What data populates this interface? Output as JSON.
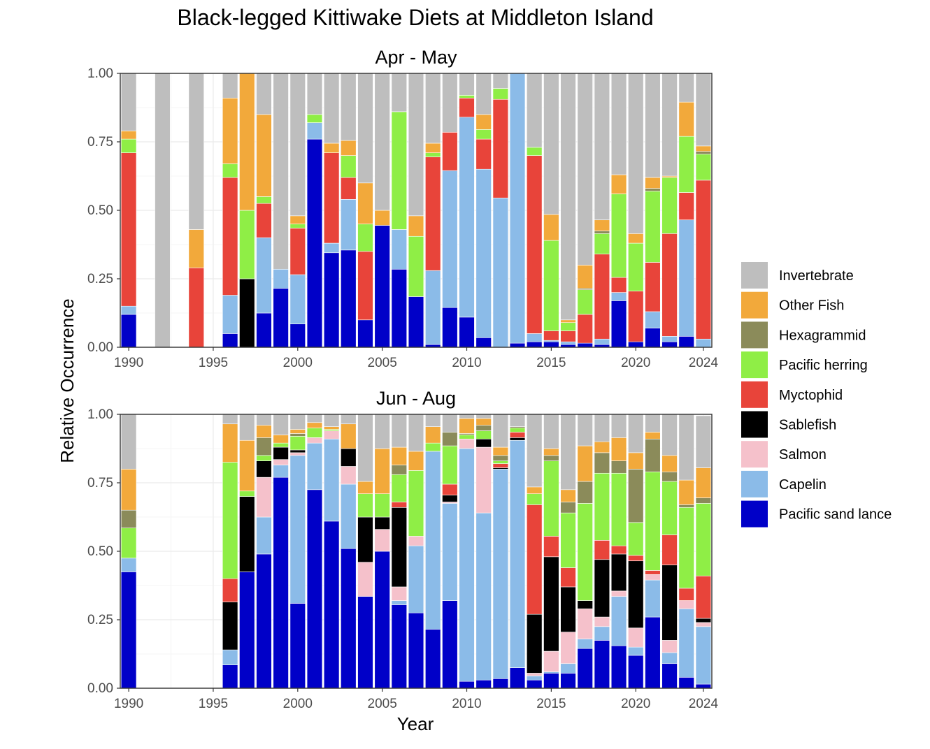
{
  "chart_data": {
    "type": "bar",
    "stacked": true,
    "title": "Black-legged Kittiwake Diets at Middleton Island",
    "xlabel": "Year",
    "ylabel": "Relative Occurrence",
    "xlim": [
      1989.5,
      2024.5
    ],
    "ylim": [
      0,
      1
    ],
    "x_ticks": [
      "1990",
      "1995",
      "2000",
      "2005",
      "2010",
      "2015",
      "2020",
      "2024"
    ],
    "y_ticks": [
      "0.00",
      "0.25",
      "0.50",
      "0.75",
      "1.00"
    ],
    "grid": true,
    "legend_position": "right",
    "stack_order": [
      "Pacific sand lance",
      "Capelin",
      "Salmon",
      "Sablefish",
      "Myctophid",
      "Pacific herring",
      "Hexagrammid",
      "Other Fish",
      "Invertebrate"
    ],
    "legend": [
      {
        "label": "Invertebrate",
        "color": "#bebebe"
      },
      {
        "label": "Other Fish",
        "color": "#f2a93b"
      },
      {
        "label": "Hexagrammid",
        "color": "#8b8b5a"
      },
      {
        "label": "Pacific herring",
        "color": "#8fee46"
      },
      {
        "label": "Myctophid",
        "color": "#e8443a"
      },
      {
        "label": "Sablefish",
        "color": "#000000"
      },
      {
        "label": "Salmon",
        "color": "#f5c1cb"
      },
      {
        "label": "Capelin",
        "color": "#8bbbe8"
      },
      {
        "label": "Pacific sand lance",
        "color": "#0000c8"
      }
    ],
    "panels": [
      {
        "label": "Apr - May",
        "bars": [
          {
            "year": 1990,
            "Pacific sand lance": 0.12,
            "Capelin": 0.03,
            "Myctophid": 0.56,
            "Pacific herring": 0.05,
            "Other Fish": 0.03,
            "Invertebrate": 0.21
          },
          {
            "year": 1992,
            "Invertebrate": 1.0
          },
          {
            "year": 1994,
            "Myctophid": 0.29,
            "Other Fish": 0.14,
            "Invertebrate": 0.57
          },
          {
            "year": 1996,
            "Pacific sand lance": 0.05,
            "Capelin": 0.14,
            "Myctophid": 0.43,
            "Pacific herring": 0.05,
            "Other Fish": 0.24,
            "Invertebrate": 0.09
          },
          {
            "year": 1997,
            "Sablefish": 0.25,
            "Pacific herring": 0.25,
            "Other Fish": 0.5
          },
          {
            "year": 1998,
            "Pacific sand lance": 0.125,
            "Capelin": 0.275,
            "Myctophid": 0.125,
            "Pacific herring": 0.025,
            "Other Fish": 0.3,
            "Invertebrate": 0.15
          },
          {
            "year": 1999,
            "Pacific sand lance": 0.215,
            "Capelin": 0.07,
            "Invertebrate": 0.715
          },
          {
            "year": 2000,
            "Pacific sand lance": 0.085,
            "Capelin": 0.18,
            "Myctophid": 0.17,
            "Pacific herring": 0.015,
            "Other Fish": 0.03,
            "Invertebrate": 0.52
          },
          {
            "year": 2001,
            "Pacific sand lance": 0.76,
            "Capelin": 0.06,
            "Pacific herring": 0.03,
            "Invertebrate": 0.15
          },
          {
            "year": 2002,
            "Pacific sand lance": 0.345,
            "Capelin": 0.035,
            "Myctophid": 0.33,
            "Other Fish": 0.035,
            "Invertebrate": 0.255
          },
          {
            "year": 2003,
            "Pacific sand lance": 0.355,
            "Capelin": 0.185,
            "Myctophid": 0.08,
            "Pacific herring": 0.08,
            "Other Fish": 0.055,
            "Invertebrate": 0.245
          },
          {
            "year": 2004,
            "Pacific sand lance": 0.1,
            "Myctophid": 0.25,
            "Pacific herring": 0.1,
            "Other Fish": 0.15,
            "Invertebrate": 0.4
          },
          {
            "year": 2005,
            "Pacific sand lance": 0.445,
            "Other Fish": 0.055,
            "Invertebrate": 0.5
          },
          {
            "year": 2006,
            "Pacific sand lance": 0.285,
            "Capelin": 0.145,
            "Pacific herring": 0.43,
            "Invertebrate": 0.14
          },
          {
            "year": 2007,
            "Pacific sand lance": 0.185,
            "Pacific herring": 0.22,
            "Other Fish": 0.075,
            "Invertebrate": 0.52
          },
          {
            "year": 2008,
            "Pacific sand lance": 0.01,
            "Capelin": 0.27,
            "Myctophid": 0.415,
            "Pacific herring": 0.015,
            "Other Fish": 0.035,
            "Invertebrate": 0.255
          },
          {
            "year": 2009,
            "Pacific sand lance": 0.145,
            "Capelin": 0.5,
            "Myctophid": 0.14,
            "Invertebrate": 0.215
          },
          {
            "year": 2010,
            "Pacific sand lance": 0.11,
            "Capelin": 0.73,
            "Myctophid": 0.07,
            "Pacific herring": 0.01,
            "Invertebrate": 0.08
          },
          {
            "year": 2011,
            "Pacific sand lance": 0.035,
            "Capelin": 0.615,
            "Myctophid": 0.11,
            "Pacific herring": 0.035,
            "Other Fish": 0.055,
            "Invertebrate": 0.15
          },
          {
            "year": 2012,
            "Capelin": 0.545,
            "Myctophid": 0.36,
            "Pacific herring": 0.04,
            "Invertebrate": 0.055
          },
          {
            "year": 2013,
            "Pacific sand lance": 0.015,
            "Capelin": 0.985
          },
          {
            "year": 2014,
            "Pacific sand lance": 0.02,
            "Capelin": 0.03,
            "Myctophid": 0.65,
            "Pacific herring": 0.03,
            "Invertebrate": 0.27
          },
          {
            "year": 2015,
            "Pacific sand lance": 0.02,
            "Capelin": 0.005,
            "Myctophid": 0.035,
            "Pacific herring": 0.33,
            "Other Fish": 0.095,
            "Invertebrate": 0.515
          },
          {
            "year": 2016,
            "Pacific sand lance": 0.01,
            "Capelin": 0.01,
            "Myctophid": 0.04,
            "Pacific herring": 0.03,
            "Other Fish": 0.01,
            "Invertebrate": 0.9
          },
          {
            "year": 2017,
            "Pacific sand lance": 0.015,
            "Myctophid": 0.105,
            "Pacific herring": 0.09,
            "Hexagrammid": 0.005,
            "Other Fish": 0.085,
            "Invertebrate": 0.7
          },
          {
            "year": 2018,
            "Pacific sand lance": 0.01,
            "Capelin": 0.02,
            "Myctophid": 0.31,
            "Pacific herring": 0.075,
            "Hexagrammid": 0.01,
            "Other Fish": 0.04,
            "Invertebrate": 0.535
          },
          {
            "year": 2019,
            "Pacific sand lance": 0.17,
            "Capelin": 0.03,
            "Myctophid": 0.055,
            "Pacific herring": 0.305,
            "Other Fish": 0.07,
            "Invertebrate": 0.37
          },
          {
            "year": 2020,
            "Pacific sand lance": 0.02,
            "Myctophid": 0.185,
            "Pacific herring": 0.175,
            "Other Fish": 0.035,
            "Invertebrate": 0.585
          },
          {
            "year": 2021,
            "Pacific sand lance": 0.07,
            "Capelin": 0.06,
            "Myctophid": 0.18,
            "Pacific herring": 0.26,
            "Hexagrammid": 0.01,
            "Other Fish": 0.04,
            "Invertebrate": 0.38
          },
          {
            "year": 2022,
            "Pacific sand lance": 0.02,
            "Capelin": 0.02,
            "Myctophid": 0.375,
            "Pacific herring": 0.205,
            "Other Fish": 0.005,
            "Invertebrate": 0.375
          },
          {
            "year": 2023,
            "Pacific sand lance": 0.04,
            "Capelin": 0.425,
            "Myctophid": 0.1,
            "Pacific herring": 0.205,
            "Other Fish": 0.125,
            "Invertebrate": 0.105
          },
          {
            "year": 2024,
            "Capelin": 0.03,
            "Myctophid": 0.58,
            "Pacific herring": 0.095,
            "Hexagrammid": 0.01,
            "Other Fish": 0.02,
            "Invertebrate": 0.265
          }
        ]
      },
      {
        "label": "Jun - Aug",
        "bars": [
          {
            "year": 1990,
            "Pacific sand lance": 0.425,
            "Capelin": 0.05,
            "Pacific herring": 0.11,
            "Hexagrammid": 0.065,
            "Other Fish": 0.15,
            "Invertebrate": 0.2
          },
          {
            "year": 1996,
            "Pacific sand lance": 0.085,
            "Capelin": 0.055,
            "Sablefish": 0.175,
            "Myctophid": 0.085,
            "Pacific herring": 0.425,
            "Other Fish": 0.14,
            "Invertebrate": 0.035
          },
          {
            "year": 1997,
            "Pacific sand lance": 0.425,
            "Sablefish": 0.275,
            "Pacific herring": 0.02,
            "Other Fish": 0.185,
            "Invertebrate": 0.095
          },
          {
            "year": 1998,
            "Pacific sand lance": 0.49,
            "Capelin": 0.135,
            "Salmon": 0.145,
            "Sablefish": 0.06,
            "Pacific herring": 0.02,
            "Hexagrammid": 0.065,
            "Other Fish": 0.045,
            "Invertebrate": 0.04
          },
          {
            "year": 1999,
            "Pacific sand lance": 0.77,
            "Capelin": 0.045,
            "Salmon": 0.02,
            "Sablefish": 0.045,
            "Pacific herring": 0.015,
            "Other Fish": 0.03,
            "Invertebrate": 0.075
          },
          {
            "year": 2000,
            "Pacific sand lance": 0.31,
            "Capelin": 0.54,
            "Salmon": 0.01,
            "Sablefish": 0.01,
            "Pacific herring": 0.05,
            "Hexagrammid": 0.01,
            "Other Fish": 0.015,
            "Invertebrate": 0.055
          },
          {
            "year": 2001,
            "Pacific sand lance": 0.725,
            "Capelin": 0.17,
            "Salmon": 0.02,
            "Pacific herring": 0.035,
            "Other Fish": 0.02,
            "Invertebrate": 0.03
          },
          {
            "year": 2002,
            "Pacific sand lance": 0.61,
            "Capelin": 0.3,
            "Salmon": 0.03,
            "Pacific herring": 0.005,
            "Other Fish": 0.01,
            "Invertebrate": 0.045
          },
          {
            "year": 2003,
            "Pacific sand lance": 0.51,
            "Capelin": 0.235,
            "Salmon": 0.065,
            "Sablefish": 0.065,
            "Other Fish": 0.09,
            "Invertebrate": 0.035
          },
          {
            "year": 2004,
            "Pacific sand lance": 0.335,
            "Salmon": 0.125,
            "Sablefish": 0.165,
            "Pacific herring": 0.085,
            "Other Fish": 0.045,
            "Invertebrate": 0.245
          },
          {
            "year": 2005,
            "Pacific sand lance": 0.5,
            "Salmon": 0.08,
            "Sablefish": 0.045,
            "Pacific herring": 0.085,
            "Other Fish": 0.165,
            "Invertebrate": 0.125
          },
          {
            "year": 2006,
            "Pacific sand lance": 0.305,
            "Capelin": 0.015,
            "Salmon": 0.05,
            "Sablefish": 0.29,
            "Myctophid": 0.02,
            "Pacific herring": 0.1,
            "Hexagrammid": 0.035,
            "Other Fish": 0.065,
            "Invertebrate": 0.12
          },
          {
            "year": 2007,
            "Pacific sand lance": 0.275,
            "Capelin": 0.245,
            "Salmon": 0.035,
            "Pacific herring": 0.24,
            "Other Fish": 0.07,
            "Invertebrate": 0.135
          },
          {
            "year": 2008,
            "Pacific sand lance": 0.215,
            "Capelin": 0.65,
            "Pacific herring": 0.03,
            "Other Fish": 0.06,
            "Invertebrate": 0.045
          },
          {
            "year": 2009,
            "Pacific sand lance": 0.32,
            "Capelin": 0.355,
            "Salmon": 0.005,
            "Sablefish": 0.025,
            "Myctophid": 0.04,
            "Pacific herring": 0.14,
            "Hexagrammid": 0.05,
            "Invertebrate": 0.065
          },
          {
            "year": 2010,
            "Pacific sand lance": 0.025,
            "Capelin": 0.85,
            "Salmon": 0.035,
            "Pacific herring": 0.015,
            "Hexagrammid": 0.005,
            "Other Fish": 0.055,
            "Invertebrate": 0.015
          },
          {
            "year": 2011,
            "Pacific sand lance": 0.03,
            "Capelin": 0.61,
            "Salmon": 0.24,
            "Sablefish": 0.03,
            "Pacific herring": 0.03,
            "Hexagrammid": 0.02,
            "Other Fish": 0.025,
            "Invertebrate": 0.015
          },
          {
            "year": 2012,
            "Pacific sand lance": 0.035,
            "Capelin": 0.765,
            "Sablefish": 0.005,
            "Myctophid": 0.015,
            "Pacific herring": 0.01,
            "Hexagrammid": 0.02,
            "Other Fish": 0.03,
            "Invertebrate": 0.12
          },
          {
            "year": 2013,
            "Pacific sand lance": 0.075,
            "Capelin": 0.83,
            "Sablefish": 0.01,
            "Myctophid": 0.02,
            "Pacific herring": 0.015,
            "Hexagrammid": 0.005,
            "Invertebrate": 0.045
          },
          {
            "year": 2014,
            "Pacific sand lance": 0.03,
            "Capelin": 0.015,
            "Salmon": 0.01,
            "Sablefish": 0.215,
            "Myctophid": 0.4,
            "Pacific herring": 0.04,
            "Other Fish": 0.025,
            "Invertebrate": 0.265
          },
          {
            "year": 2015,
            "Pacific sand lance": 0.055,
            "Capelin": 0.005,
            "Salmon": 0.075,
            "Sablefish": 0.345,
            "Myctophid": 0.075,
            "Pacific herring": 0.275,
            "Hexagrammid": 0.02,
            "Other Fish": 0.025,
            "Invertebrate": 0.125
          },
          {
            "year": 2016,
            "Pacific sand lance": 0.055,
            "Capelin": 0.035,
            "Salmon": 0.115,
            "Sablefish": 0.165,
            "Myctophid": 0.07,
            "Pacific herring": 0.2,
            "Hexagrammid": 0.04,
            "Other Fish": 0.045,
            "Invertebrate": 0.275
          },
          {
            "year": 2017,
            "Pacific sand lance": 0.145,
            "Capelin": 0.035,
            "Salmon": 0.11,
            "Sablefish": 0.03,
            "Pacific herring": 0.355,
            "Hexagrammid": 0.08,
            "Other Fish": 0.13,
            "Invertebrate": 0.115
          },
          {
            "year": 2018,
            "Pacific sand lance": 0.175,
            "Capelin": 0.05,
            "Salmon": 0.035,
            "Sablefish": 0.21,
            "Myctophid": 0.07,
            "Pacific herring": 0.245,
            "Hexagrammid": 0.075,
            "Other Fish": 0.04,
            "Invertebrate": 0.1
          },
          {
            "year": 2019,
            "Pacific sand lance": 0.155,
            "Capelin": 0.18,
            "Salmon": 0.02,
            "Sablefish": 0.135,
            "Myctophid": 0.03,
            "Pacific herring": 0.265,
            "Hexagrammid": 0.045,
            "Other Fish": 0.085,
            "Invertebrate": 0.085
          },
          {
            "year": 2020,
            "Pacific sand lance": 0.12,
            "Capelin": 0.03,
            "Salmon": 0.07,
            "Sablefish": 0.245,
            "Myctophid": 0.02,
            "Pacific herring": 0.12,
            "Hexagrammid": 0.195,
            "Other Fish": 0.06,
            "Invertebrate": 0.14
          },
          {
            "year": 2021,
            "Pacific sand lance": 0.26,
            "Capelin": 0.135,
            "Salmon": 0.02,
            "Myctophid": 0.015,
            "Pacific herring": 0.36,
            "Hexagrammid": 0.12,
            "Other Fish": 0.025,
            "Invertebrate": 0.065
          },
          {
            "year": 2022,
            "Pacific sand lance": 0.09,
            "Capelin": 0.04,
            "Salmon": 0.045,
            "Sablefish": 0.275,
            "Myctophid": 0.11,
            "Pacific herring": 0.195,
            "Hexagrammid": 0.035,
            "Other Fish": 0.06,
            "Invertebrate": 0.15
          },
          {
            "year": 2023,
            "Pacific sand lance": 0.04,
            "Capelin": 0.25,
            "Salmon": 0.03,
            "Myctophid": 0.045,
            "Pacific herring": 0.295,
            "Hexagrammid": 0.01,
            "Other Fish": 0.09,
            "Invertebrate": 0.24
          },
          {
            "year": 2024,
            "Pacific sand lance": 0.015,
            "Capelin": 0.21,
            "Salmon": 0.015,
            "Sablefish": 0.015,
            "Myctophid": 0.155,
            "Pacific herring": 0.265,
            "Hexagrammid": 0.02,
            "Other Fish": 0.11,
            "Invertebrate": 0.19
          }
        ]
      }
    ]
  }
}
